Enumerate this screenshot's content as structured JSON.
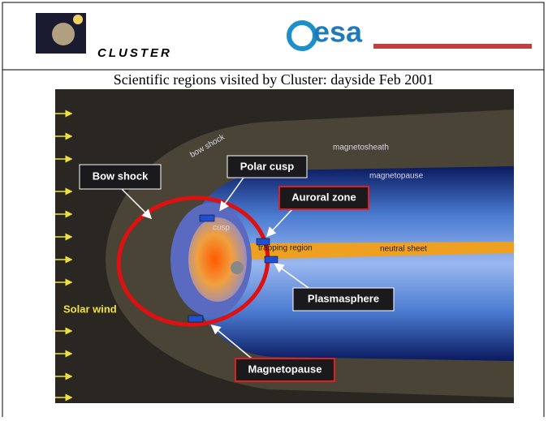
{
  "header": {
    "mission": "CLUSTER",
    "agency": "esa"
  },
  "title": "Scientific regions visited by Cluster: dayside Feb 2001",
  "figure": {
    "region_labels": [
      "bow shock",
      "magnetosheath",
      "magnetopause",
      "trapping region",
      "neutral sheet",
      "cusp"
    ],
    "callouts": [
      "Bow shock",
      "Polar cusp",
      "Auroral zone",
      "Plasmasphere",
      "Magnetopause"
    ],
    "solar_wind": "Solar wind"
  }
}
